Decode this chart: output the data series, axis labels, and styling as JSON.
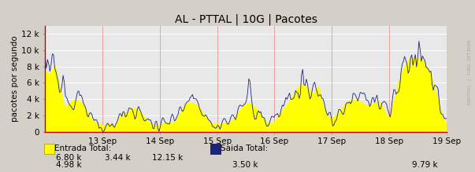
{
  "title": "AL - PTTAL | 10G | Pacotes",
  "ylabel": "pacotes por segundo",
  "bg_color": "#d4d0c8",
  "plot_bg_color": "#e8e8e8",
  "grid_color_h": "#ffffff",
  "grid_color_v": "#f0a0a0",
  "ylim": [
    0,
    13000
  ],
  "yticks": [
    0,
    2000,
    4000,
    6000,
    8000,
    10000,
    12000
  ],
  "ytick_labels": [
    "0",
    "2 k",
    "4 k",
    "6 k",
    "8 k",
    "10 k",
    "12 k"
  ],
  "xtick_labels": [
    "13 Sep",
    "14 Sep",
    "15 Sep",
    "16 Sep",
    "17 Sep",
    "18 Sep",
    "19 Sep"
  ],
  "entrada_color": "#ffff00",
  "saida_color": "#1a237e",
  "legend_entrada": "Entrada Total:",
  "legend_saida": "Saida Total:",
  "stats_row1": [
    "6.80 k",
    "3.44 k",
    "12.15 k"
  ],
  "stats_row2_left": "4.98 k",
  "stats_saida_val": "3.50 k",
  "stats_saida_max": "9.79 k",
  "watermark": "RRDTOOL / TOBI OETIKER",
  "title_fontsize": 10,
  "axis_fontsize": 7.5,
  "legend_fontsize": 7.5
}
